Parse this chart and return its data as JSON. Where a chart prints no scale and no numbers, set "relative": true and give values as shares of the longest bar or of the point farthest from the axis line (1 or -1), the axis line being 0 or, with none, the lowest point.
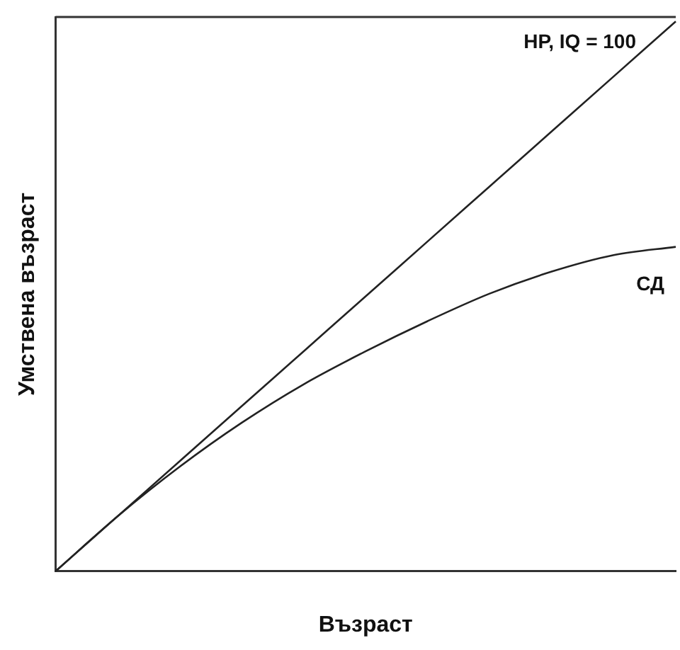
{
  "chart_data": {
    "type": "line",
    "relative": true,
    "xlabel": "Възраст",
    "ylabel": "Умствена възраст",
    "categories": [
      null,
      null,
      null,
      null,
      null,
      null,
      null,
      null,
      null,
      null,
      null
    ],
    "series": [
      {
        "name": "НР, IQ = 100",
        "color": "#222222",
        "values": [
          0,
          0.1,
          0.2,
          0.3,
          0.4,
          0.5,
          0.6,
          0.7,
          0.8,
          0.9,
          1
        ]
      },
      {
        "name": "СД",
        "color": "#222222",
        "values": [
          0,
          0.1,
          0.19,
          0.27,
          0.34,
          0.4,
          0.455,
          0.505,
          0.545,
          0.575,
          0.59
        ]
      }
    ],
    "grid": false,
    "legend": false,
    "marker": "none",
    "line_style": "solid"
  }
}
